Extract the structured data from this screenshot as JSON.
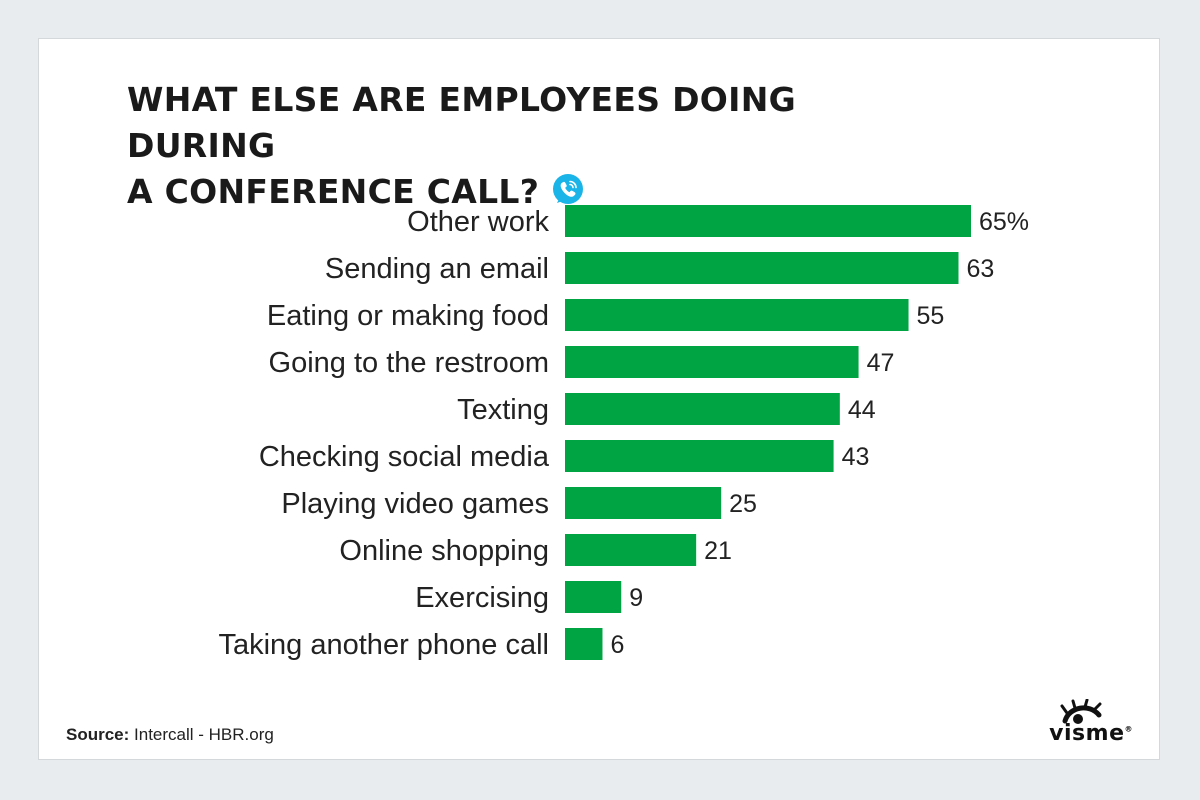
{
  "chart_data": {
    "type": "bar",
    "orientation": "horizontal",
    "title": "WHAT ELSE ARE EMPLOYEES DOING DURING A CONFERENCE CALL?",
    "title_lines": [
      "WHAT ELSE ARE EMPLOYEES DOING DURING",
      "A CONFERENCE CALL?"
    ],
    "categories": [
      "Other work",
      "Sending an email",
      "Eating or making food",
      "Going to the restroom",
      "Texting",
      "Checking social media",
      "Playing video games",
      "Online shopping",
      "Exercising",
      "Taking another phone call"
    ],
    "values": [
      65,
      63,
      55,
      47,
      44,
      43,
      25,
      21,
      9,
      6
    ],
    "value_labels": [
      "65%",
      "63",
      "55",
      "47",
      "44",
      "43",
      "25",
      "21",
      "9",
      "6"
    ],
    "xlim": [
      0,
      65
    ],
    "bar_color": "#00a443",
    "grid": false,
    "legend": "none"
  },
  "title_icon": "phone-chat-bubble-icon",
  "icon_color": "#1bb4e8",
  "source": {
    "label": "Source:",
    "text": " Intercall - HBR.org"
  },
  "brand": {
    "name": "visme",
    "logo_icon": "visme-eye-logo-icon",
    "mark": "®"
  }
}
